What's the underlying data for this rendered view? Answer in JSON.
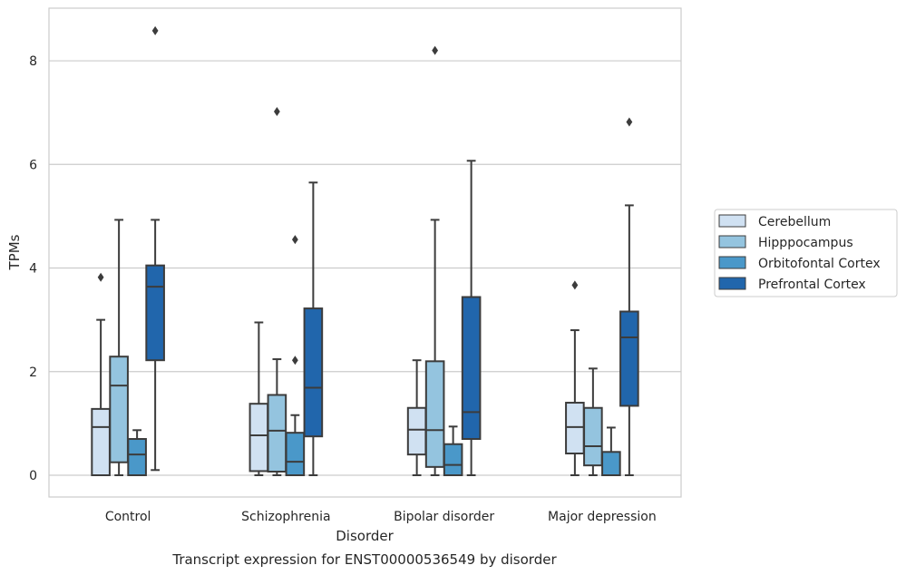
{
  "caption": "Transcript expression for ENST00000536549 by disorder",
  "chart_data": {
    "type": "box",
    "xlabel": "Disorder",
    "ylabel": "TPMs",
    "ylim": [
      -0.4,
      9.0
    ],
    "yticks": [
      0,
      2,
      4,
      6,
      8
    ],
    "grid": "horizontal",
    "legend_position": "right",
    "categories": [
      "Control",
      "Schizophrenia",
      "Bipolar disorder",
      "Major depression"
    ],
    "series": [
      {
        "name": "Cerebellum",
        "color": "#d0e1f2",
        "boxes": [
          {
            "whisker_low": 0.0,
            "q1": 0.0,
            "median": 0.93,
            "q3": 1.28,
            "whisker_high": 3.0,
            "outliers": [
              3.82
            ]
          },
          {
            "whisker_low": 0.0,
            "q1": 0.08,
            "median": 0.77,
            "q3": 1.38,
            "whisker_high": 2.95,
            "outliers": []
          },
          {
            "whisker_low": 0.0,
            "q1": 0.4,
            "median": 0.88,
            "q3": 1.3,
            "whisker_high": 2.22,
            "outliers": []
          },
          {
            "whisker_low": 0.0,
            "q1": 0.42,
            "median": 0.93,
            "q3": 1.4,
            "whisker_high": 2.8,
            "outliers": [
              3.67
            ]
          }
        ]
      },
      {
        "name": "Hipppocampus",
        "color": "#94c4df",
        "boxes": [
          {
            "whisker_low": 0.0,
            "q1": 0.25,
            "median": 1.73,
            "q3": 2.29,
            "whisker_high": 4.93,
            "outliers": []
          },
          {
            "whisker_low": 0.0,
            "q1": 0.07,
            "median": 0.86,
            "q3": 1.55,
            "whisker_high": 2.24,
            "outliers": [
              7.02
            ]
          },
          {
            "whisker_low": 0.0,
            "q1": 0.16,
            "median": 0.87,
            "q3": 2.2,
            "whisker_high": 4.93,
            "outliers": [
              8.2
            ]
          },
          {
            "whisker_low": 0.0,
            "q1": 0.19,
            "median": 0.56,
            "q3": 1.3,
            "whisker_high": 2.06,
            "outliers": []
          }
        ]
      },
      {
        "name": "Orbitofontal Cortex",
        "color": "#4a98c9",
        "boxes": [
          {
            "whisker_low": 0.0,
            "q1": 0.0,
            "median": 0.4,
            "q3": 0.7,
            "whisker_high": 0.87,
            "outliers": []
          },
          {
            "whisker_low": 0.0,
            "q1": 0.0,
            "median": 0.26,
            "q3": 0.82,
            "whisker_high": 1.16,
            "outliers": [
              2.22,
              4.55
            ]
          },
          {
            "whisker_low": 0.0,
            "q1": 0.0,
            "median": 0.2,
            "q3": 0.6,
            "whisker_high": 0.94,
            "outliers": []
          },
          {
            "whisker_low": 0.0,
            "q1": 0.0,
            "median": 0.0,
            "q3": 0.45,
            "whisker_high": 0.92,
            "outliers": []
          }
        ]
      },
      {
        "name": "Prefrontal Cortex",
        "color": "#2166ac",
        "boxes": [
          {
            "whisker_low": 0.1,
            "q1": 2.22,
            "median": 3.64,
            "q3": 4.05,
            "whisker_high": 4.93,
            "outliers": [
              8.58
            ]
          },
          {
            "whisker_low": 0.0,
            "q1": 0.75,
            "median": 1.69,
            "q3": 3.22,
            "whisker_high": 5.65,
            "outliers": []
          },
          {
            "whisker_low": 0.0,
            "q1": 0.7,
            "median": 1.22,
            "q3": 3.44,
            "whisker_high": 6.07,
            "outliers": []
          },
          {
            "whisker_low": 0.0,
            "q1": 1.34,
            "median": 2.66,
            "q3": 3.16,
            "whisker_high": 5.21,
            "outliers": [
              6.82
            ]
          }
        ]
      }
    ]
  }
}
